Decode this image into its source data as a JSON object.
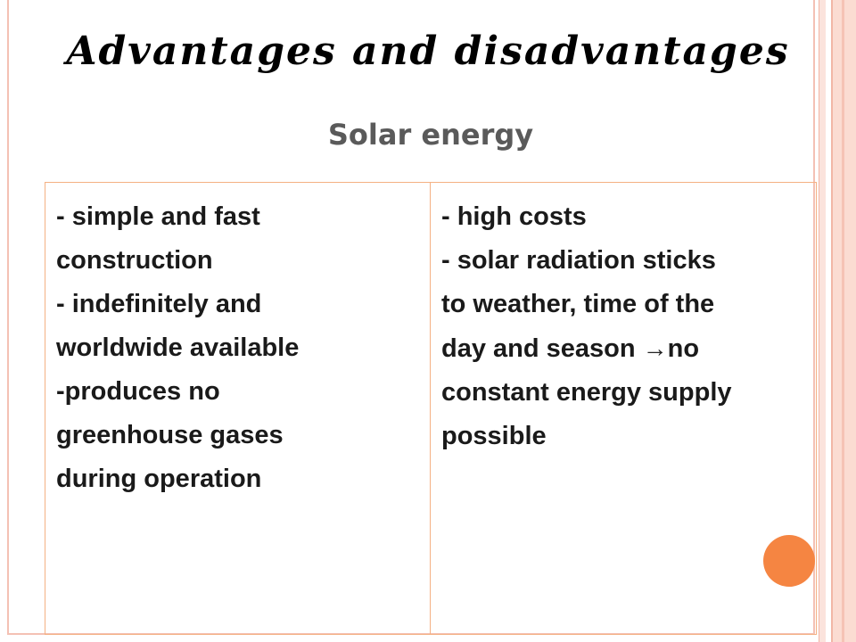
{
  "slide": {
    "title": "Advantages and disadvantages",
    "subtitle": "Solar energy"
  },
  "table": {
    "advantages": [
      "- simple and fast",
      "construction",
      "- indefinitely and",
      "worldwide available",
      "-produces no",
      "greenhouse gases",
      "during operation"
    ],
    "disadvantages": {
      "line1": "- high costs",
      "line2": "- solar radiation sticks",
      "line3": "to weather, time of the",
      "line4_before_arrow": "day and season ",
      "arrow": "→",
      "line4_after_arrow": "no",
      "line5": "constant energy supply",
      "line6": "possible"
    }
  },
  "colors": {
    "accent_dot": "#f58542",
    "table_border": "#f4b183",
    "frame_border": "#f4c1b4"
  }
}
